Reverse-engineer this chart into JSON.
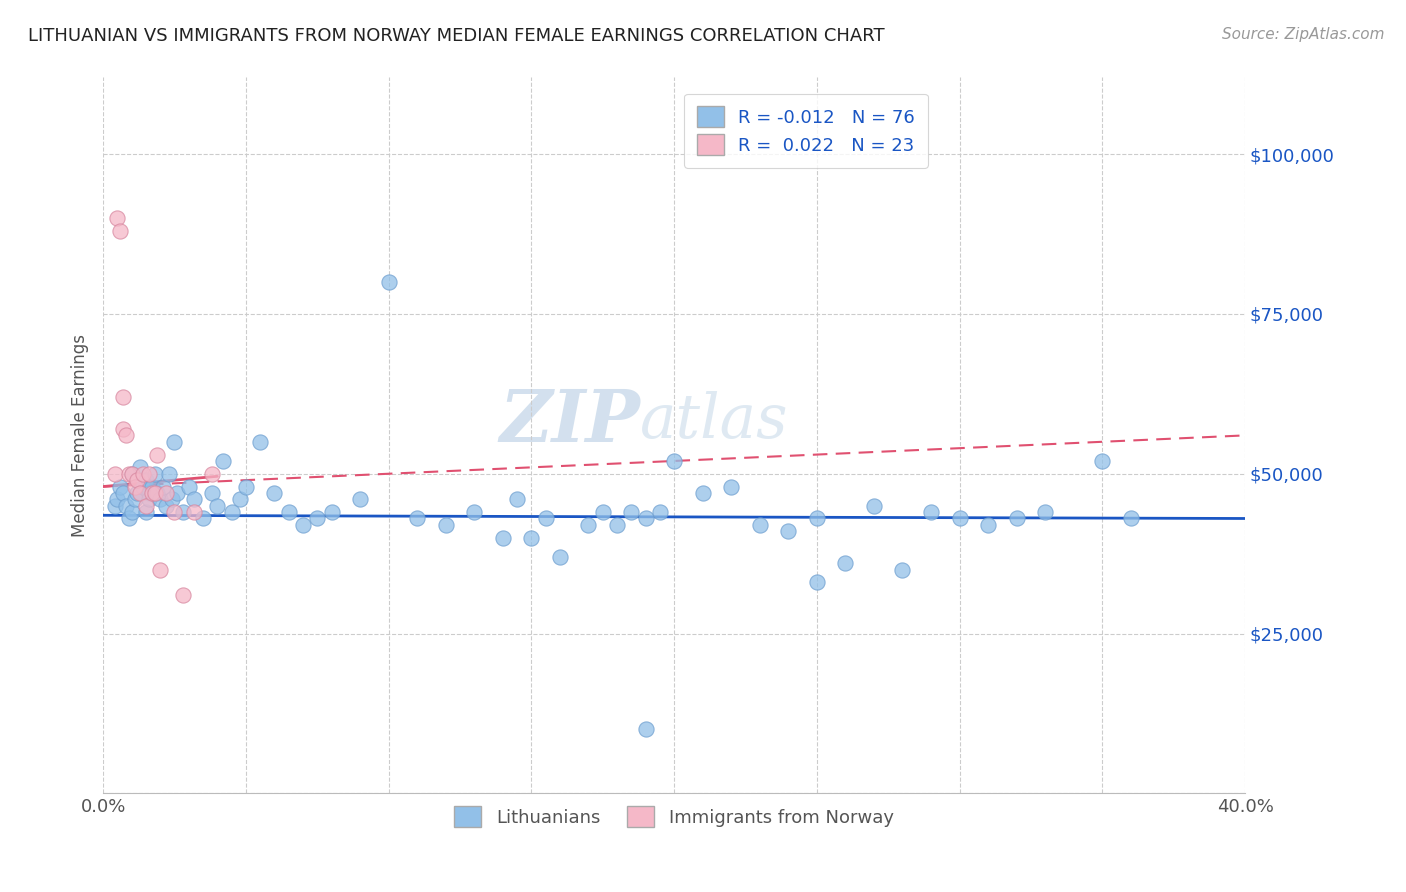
{
  "title": "LITHUANIAN VS IMMIGRANTS FROM NORWAY MEDIAN FEMALE EARNINGS CORRELATION CHART",
  "source": "Source: ZipAtlas.com",
  "ylabel": "Median Female Earnings",
  "xlim": [
    0.0,
    0.4
  ],
  "ylim": [
    0,
    112000
  ],
  "yticks": [
    0,
    25000,
    50000,
    75000,
    100000
  ],
  "ytick_labels": [
    "",
    "$25,000",
    "$50,000",
    "$75,000",
    "$100,000"
  ],
  "blue_R": -0.012,
  "blue_N": 76,
  "pink_R": 0.022,
  "pink_N": 23,
  "blue_color": "#92c0e8",
  "pink_color": "#f5b8c8",
  "trend_blue_color": "#1a56c4",
  "trend_pink_color": "#e05070",
  "background_color": "#ffffff",
  "grid_color": "#cccccc",
  "blue_x": [
    0.004,
    0.005,
    0.006,
    0.007,
    0.008,
    0.009,
    0.01,
    0.01,
    0.011,
    0.012,
    0.013,
    0.014,
    0.015,
    0.015,
    0.016,
    0.016,
    0.017,
    0.018,
    0.019,
    0.02,
    0.021,
    0.022,
    0.023,
    0.024,
    0.025,
    0.026,
    0.028,
    0.03,
    0.032,
    0.035,
    0.038,
    0.04,
    0.042,
    0.045,
    0.048,
    0.05,
    0.055,
    0.06,
    0.065,
    0.07,
    0.075,
    0.08,
    0.09,
    0.1,
    0.11,
    0.12,
    0.13,
    0.14,
    0.145,
    0.15,
    0.155,
    0.16,
    0.17,
    0.175,
    0.18,
    0.185,
    0.19,
    0.195,
    0.2,
    0.21,
    0.22,
    0.23,
    0.24,
    0.25,
    0.26,
    0.27,
    0.28,
    0.29,
    0.3,
    0.31,
    0.32,
    0.33,
    0.35,
    0.36,
    0.25,
    0.19
  ],
  "blue_y": [
    45000,
    46000,
    48000,
    47000,
    45000,
    43000,
    50000,
    44000,
    46000,
    47000,
    51000,
    48000,
    49000,
    44000,
    47000,
    46000,
    48000,
    50000,
    47000,
    46000,
    48000,
    45000,
    50000,
    46000,
    55000,
    47000,
    44000,
    48000,
    46000,
    43000,
    47000,
    45000,
    52000,
    44000,
    46000,
    48000,
    55000,
    47000,
    44000,
    42000,
    43000,
    44000,
    46000,
    80000,
    43000,
    42000,
    44000,
    40000,
    46000,
    40000,
    43000,
    37000,
    42000,
    44000,
    42000,
    44000,
    43000,
    44000,
    52000,
    47000,
    48000,
    42000,
    41000,
    33000,
    36000,
    45000,
    35000,
    44000,
    43000,
    42000,
    43000,
    44000,
    52000,
    43000,
    43000,
    10000
  ],
  "pink_x": [
    0.004,
    0.005,
    0.006,
    0.007,
    0.007,
    0.008,
    0.009,
    0.01,
    0.011,
    0.012,
    0.013,
    0.014,
    0.015,
    0.016,
    0.017,
    0.018,
    0.019,
    0.02,
    0.022,
    0.025,
    0.028,
    0.032,
    0.038
  ],
  "pink_y": [
    50000,
    90000,
    88000,
    62000,
    57000,
    56000,
    50000,
    50000,
    48000,
    49000,
    47000,
    50000,
    45000,
    50000,
    47000,
    47000,
    53000,
    35000,
    47000,
    44000,
    31000,
    44000,
    50000
  ],
  "blue_trend_x": [
    0.0,
    0.4
  ],
  "blue_trend_y": [
    43500,
    43000
  ],
  "pink_trend_x": [
    0.0,
    0.4
  ],
  "pink_trend_y": [
    48000,
    56000
  ]
}
